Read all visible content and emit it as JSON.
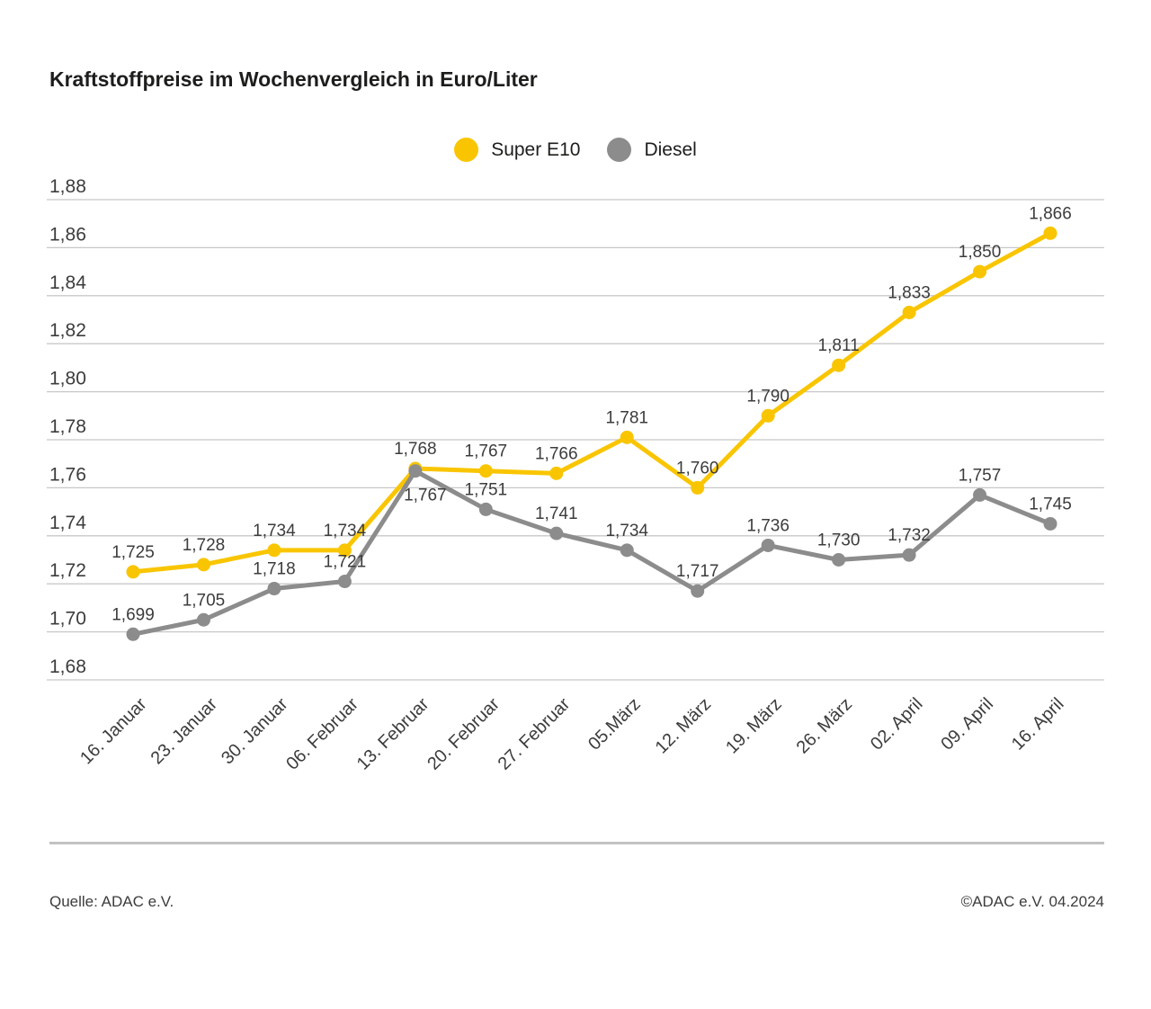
{
  "title": "Kraftstoffpreise im Wochenvergleich in Euro/Liter",
  "footer": {
    "source": "Quelle: ADAC e.V.",
    "copyright": "©ADAC e.V. 04.2024"
  },
  "colors": {
    "super_e10": "#f9c500",
    "diesel": "#8c8c8c",
    "gridline": "#c8c8c8",
    "text": "#3c3c3c",
    "title_text": "#1d1d1b"
  },
  "chart_data": {
    "type": "line",
    "title": "Kraftstoffpreise im Wochenvergleich in Euro/Liter",
    "xlabel": "",
    "ylabel": "Euro/Liter",
    "categories": [
      "16. Januar",
      "23. Januar",
      "30. Januar",
      "06. Februar",
      "13. Februar",
      "20. Februar",
      "27. Februar",
      "05.März",
      "12. März",
      "19. März",
      "26. März",
      "02. April",
      "09. April",
      "16. April"
    ],
    "series": [
      {
        "name": "Super E10",
        "color": "#f9c500",
        "values": [
          1.725,
          1.728,
          1.734,
          1.734,
          1.768,
          1.767,
          1.766,
          1.781,
          1.76,
          1.79,
          1.811,
          1.833,
          1.85,
          1.866
        ]
      },
      {
        "name": "Diesel",
        "color": "#8c8c8c",
        "values": [
          1.699,
          1.705,
          1.718,
          1.721,
          1.767,
          1.751,
          1.741,
          1.734,
          1.717,
          1.736,
          1.73,
          1.732,
          1.757,
          1.745
        ]
      }
    ],
    "ylim": [
      1.68,
      1.88
    ],
    "ytick_step": 0.02,
    "ytick_labels": [
      "1,88",
      "1,86",
      "1,84",
      "1,82",
      "1,80",
      "1,78",
      "1,76",
      "1,74",
      "1,72",
      "1,70",
      "1,68"
    ],
    "decimal_separator": ",",
    "grid": true,
    "legend_position": "top-center",
    "value_labels": true,
    "label_overrides": {
      "Diesel": {
        "4": {
          "position": "below",
          "dx": 11,
          "dy": 33
        }
      }
    }
  }
}
